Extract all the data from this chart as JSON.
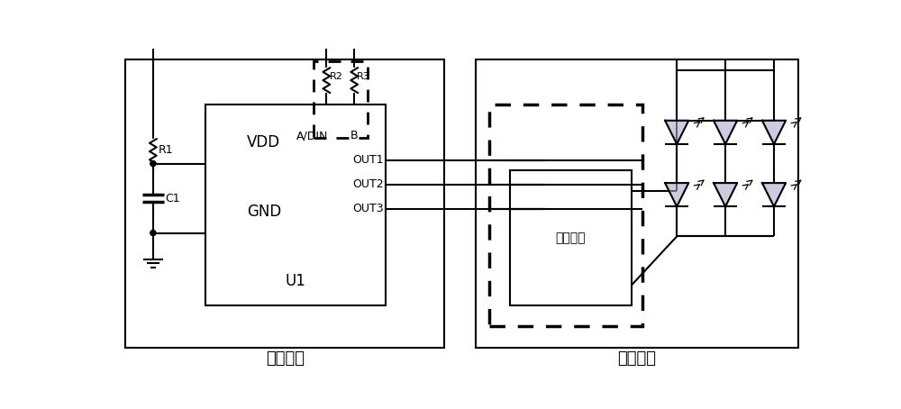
{
  "bg_color": "#ffffff",
  "line_color": "#000000",
  "text_color": "#000000",
  "led_fill": "#aaaacc",
  "fig_width": 10.0,
  "fig_height": 4.54,
  "decode_label": "解码模块",
  "display_label": "显示模块",
  "u1_label": "U1",
  "vdd_label": "VDD",
  "gnd_label": "GND",
  "adin_label": "A/DIN",
  "b_label": "B",
  "out1_label": "OUT1",
  "out2_label": "OUT2",
  "out3_label": "OUT3",
  "r1_label": "R1",
  "r2_label": "R2",
  "r3_label": "R3",
  "c1_label": "C1",
  "drive_label": "驱动单元"
}
